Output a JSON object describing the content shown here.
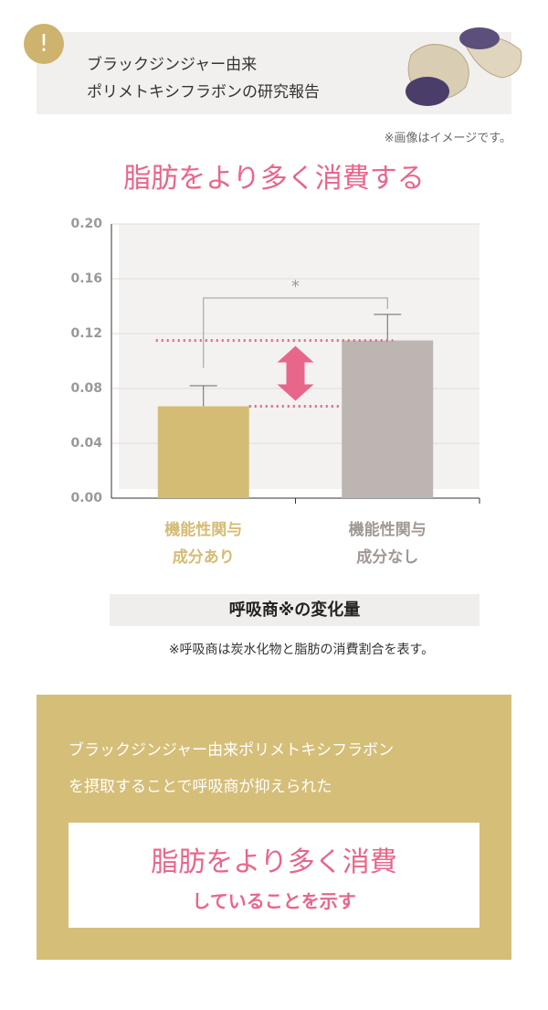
{
  "header": {
    "lines": [
      "ブラックジンジャー由来",
      "ポリメトキシフラボンの研究報告"
    ],
    "icon": "!",
    "note": "※画像はイメージです。"
  },
  "chart_data": {
    "type": "bar",
    "title": "脂肪をより多く消費する",
    "categories": [
      "機能性関与\n成分あり",
      "機能性関与\n成分なし"
    ],
    "values": [
      0.067,
      0.115
    ],
    "errors": [
      0.015,
      0.019
    ],
    "colors": [
      "#d4bc74",
      "#bdb5b1"
    ],
    "ylim": [
      0,
      0.2
    ],
    "yticks": [
      {
        "value": 0,
        "label": "0.00"
      },
      {
        "value": 0.04,
        "label": "0.04"
      },
      {
        "value": 0.08,
        "label": "0.08"
      },
      {
        "value": 0.12,
        "label": "0.12"
      },
      {
        "value": 0.16,
        "label": "0.16"
      },
      {
        "value": 0.2,
        "label": "0.20"
      }
    ],
    "grid": true,
    "annotation": "*",
    "xlabel": "呼吸商※の変化量",
    "footnote": "※呼吸商は炭水化物と脂肪の消費割合を表す。"
  },
  "summary": {
    "lines": [
      "ブラックジンジャー由来ポリメトキシフラボン",
      "を摂取することで呼吸商が抑えられた"
    ],
    "highlight": "脂肪をより多く消費",
    "highlight_sub": "していることを示す"
  }
}
